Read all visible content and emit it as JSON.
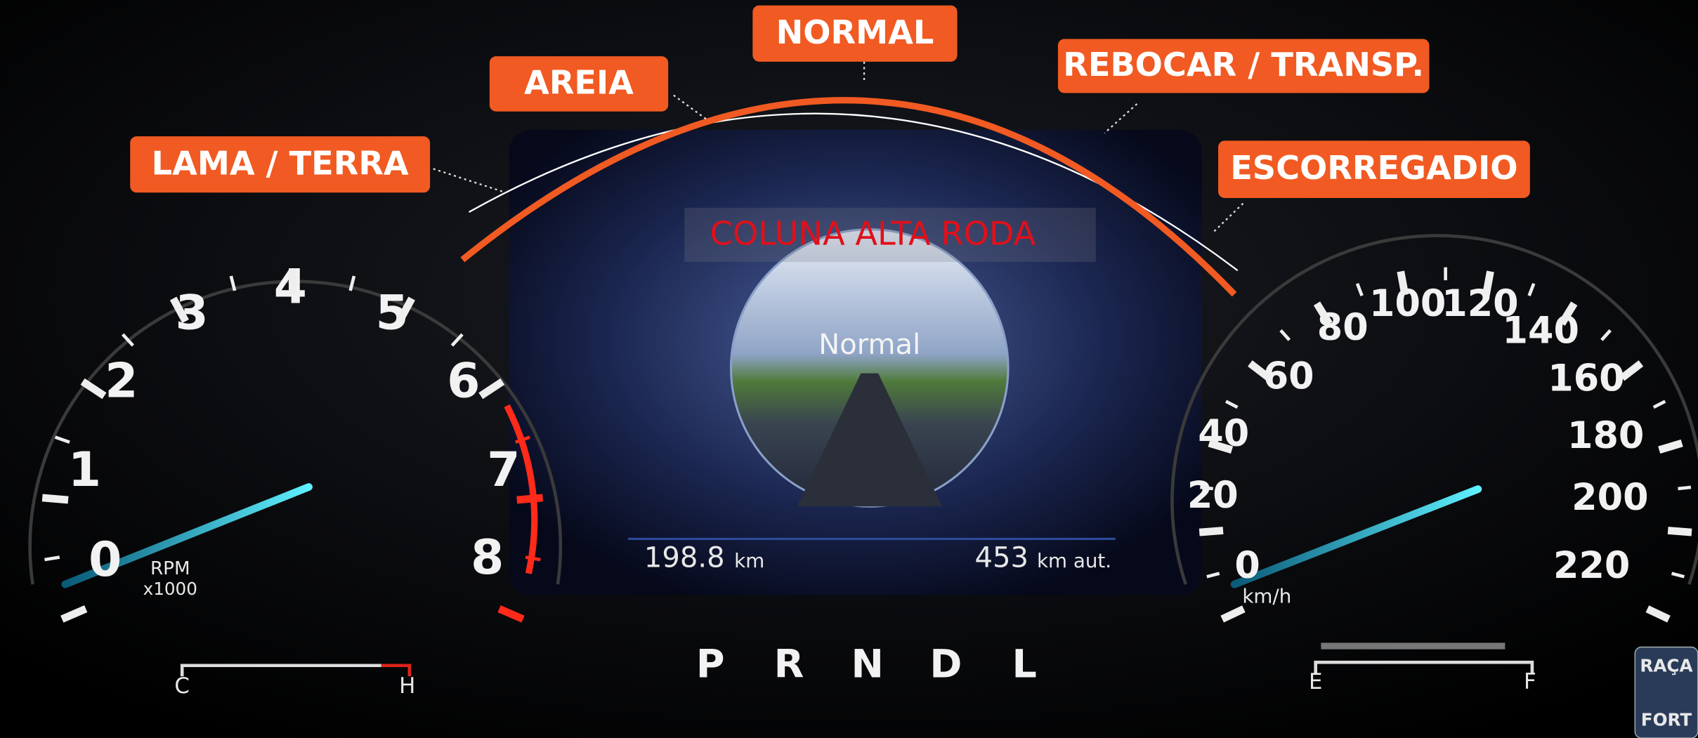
{
  "modes": [
    "LAMA / TERRA",
    "AREIA",
    "NORMAL",
    "REBOCAR / TRANSP.",
    "ESCORREGADIO"
  ],
  "overlay": "COLUNA ALTA RODA",
  "display": {
    "mode": "Normal",
    "trip": {
      "value": "198.8",
      "unit": "km"
    },
    "range": {
      "value": "453",
      "unit": "km aut."
    }
  },
  "tachometer": {
    "labels": [
      "0",
      "1",
      "2",
      "3",
      "4",
      "5",
      "6",
      "7",
      "8"
    ],
    "unit": "RPM",
    "multiplier": "x1000"
  },
  "speedometer": {
    "labels": [
      "0",
      "20",
      "40",
      "60",
      "80",
      "100",
      "120",
      "140",
      "160",
      "180",
      "200",
      "220"
    ],
    "unit": "km/h"
  },
  "gears": [
    "P",
    "R",
    "N",
    "D",
    "L"
  ],
  "temperature": {
    "low": "C",
    "high": "H"
  },
  "fuel": {
    "empty": "E",
    "full": "F"
  },
  "logo": [
    "RAÇA",
    "FORT"
  ]
}
